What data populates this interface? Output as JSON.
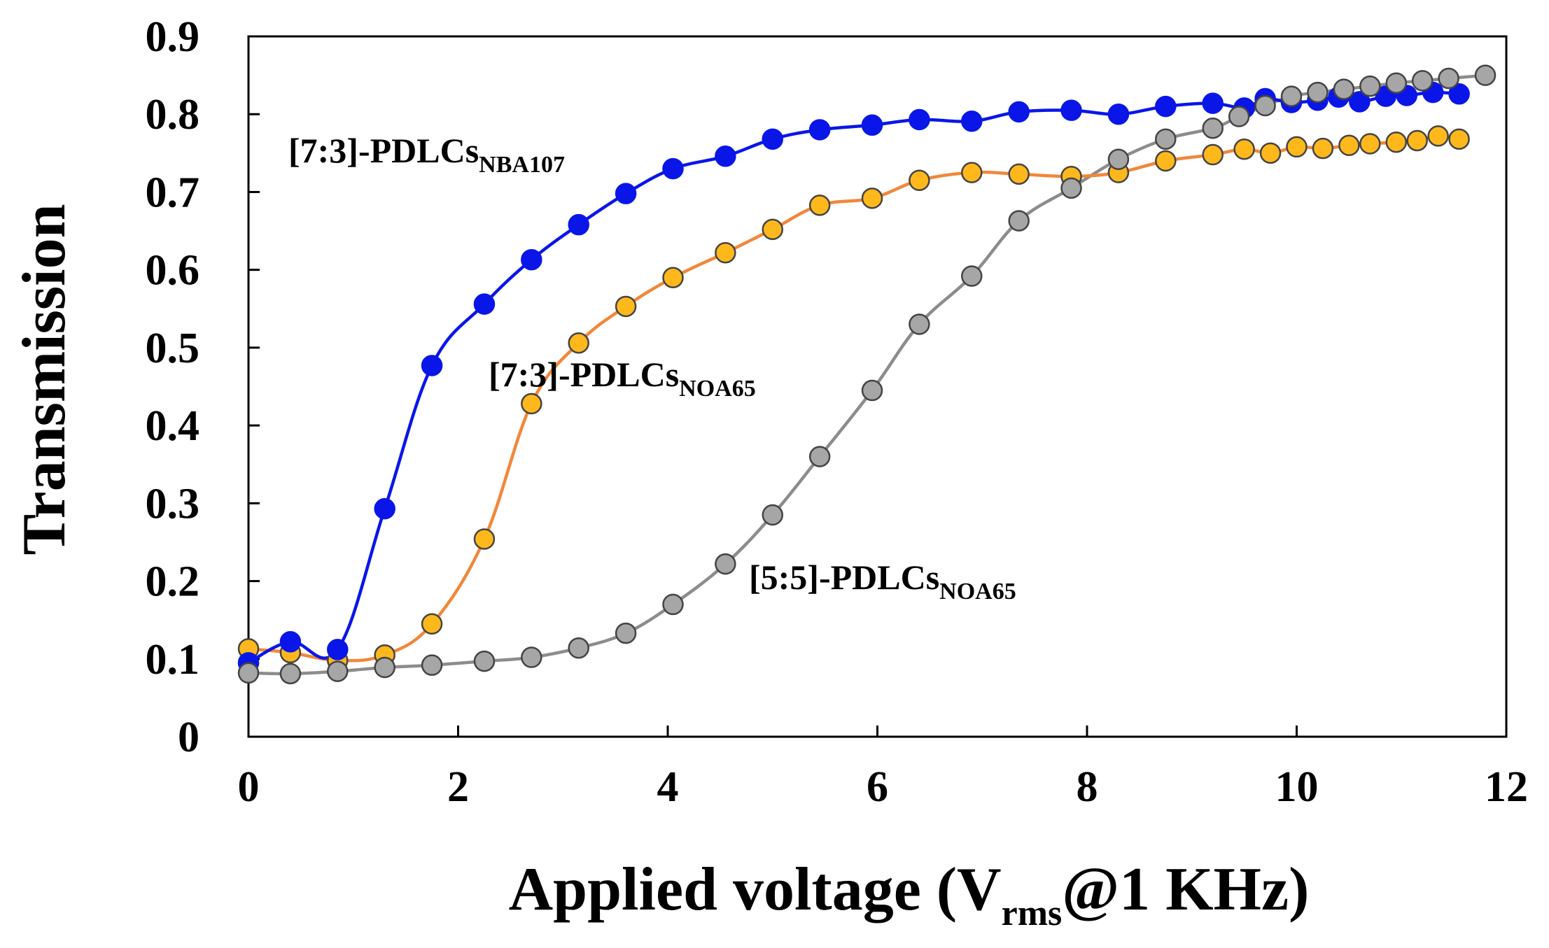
{
  "chart_data": {
    "type": "line",
    "title": "",
    "xlabel": {
      "main": "Applied voltage (V",
      "sub": "rms",
      "tail": "@1 KHz)"
    },
    "ylabel": "Transmission",
    "xlim": [
      0,
      12
    ],
    "ylim": [
      0,
      0.9
    ],
    "xticks": [
      "0",
      "2",
      "4",
      "6",
      "8",
      "10",
      "12"
    ],
    "yticks": [
      "0",
      "0.1",
      "0.2",
      "0.3",
      "0.4",
      "0.5",
      "0.6",
      "0.7",
      "0.8",
      "0.9"
    ],
    "grid": false,
    "legend": "inline labels",
    "series": [
      {
        "name": "[7:3]-PDLCs",
        "sub": "NBA107",
        "line_color": "#0a16e8",
        "marker_color": "#0a16e8",
        "marker_edge": "#0a16e8",
        "x": [
          0,
          0.4,
          0.85,
          1.3,
          1.75,
          2.25,
          2.7,
          3.15,
          3.6,
          4.05,
          4.55,
          5.0,
          5.45,
          5.95,
          6.4,
          6.9,
          7.35,
          7.85,
          8.3,
          8.75,
          9.2,
          9.5,
          9.7,
          9.95,
          10.2,
          10.4,
          10.6,
          10.85,
          11.05,
          11.3,
          11.55
        ],
        "y": [
          0.095,
          0.122,
          0.112,
          0.293,
          0.477,
          0.556,
          0.613,
          0.658,
          0.698,
          0.73,
          0.746,
          0.768,
          0.78,
          0.786,
          0.793,
          0.791,
          0.803,
          0.805,
          0.8,
          0.81,
          0.814,
          0.808,
          0.82,
          0.815,
          0.818,
          0.822,
          0.816,
          0.823,
          0.824,
          0.828,
          0.826
        ]
      },
      {
        "name": "[7:3]-PDLCs",
        "sub": "NOA65",
        "line_color": "#f2873a",
        "marker_color": "#ffb81c",
        "marker_edge": "#444444",
        "x": [
          0,
          0.4,
          0.85,
          1.3,
          1.75,
          2.25,
          2.7,
          3.15,
          3.6,
          4.05,
          4.55,
          5.0,
          5.45,
          5.95,
          6.4,
          6.9,
          7.35,
          7.85,
          8.3,
          8.75,
          9.2,
          9.5,
          9.75,
          10.0,
          10.25,
          10.5,
          10.7,
          10.95,
          11.15,
          11.35,
          11.55
        ],
        "y": [
          0.113,
          0.108,
          0.098,
          0.105,
          0.145,
          0.254,
          0.428,
          0.506,
          0.553,
          0.59,
          0.622,
          0.652,
          0.683,
          0.692,
          0.715,
          0.725,
          0.723,
          0.72,
          0.725,
          0.74,
          0.748,
          0.755,
          0.75,
          0.758,
          0.756,
          0.76,
          0.762,
          0.764,
          0.766,
          0.772,
          0.768
        ]
      },
      {
        "name": "[5:5]-PDLCs",
        "sub": "NOA65",
        "line_color": "#8c8c8c",
        "marker_color": "#a6a6a6",
        "marker_edge": "#444444",
        "x": [
          0,
          0.4,
          0.85,
          1.3,
          1.75,
          2.25,
          2.7,
          3.15,
          3.6,
          4.05,
          4.55,
          5.0,
          5.45,
          5.95,
          6.4,
          6.9,
          7.35,
          7.85,
          8.3,
          8.75,
          9.2,
          9.45,
          9.7,
          9.95,
          10.2,
          10.45,
          10.7,
          10.95,
          11.2,
          11.45,
          11.8
        ],
        "y": [
          0.082,
          0.081,
          0.084,
          0.089,
          0.092,
          0.097,
          0.102,
          0.114,
          0.133,
          0.17,
          0.222,
          0.285,
          0.36,
          0.445,
          0.53,
          0.592,
          0.663,
          0.705,
          0.742,
          0.768,
          0.782,
          0.797,
          0.811,
          0.823,
          0.828,
          0.832,
          0.836,
          0.84,
          0.843,
          0.846,
          0.85
        ]
      }
    ]
  }
}
